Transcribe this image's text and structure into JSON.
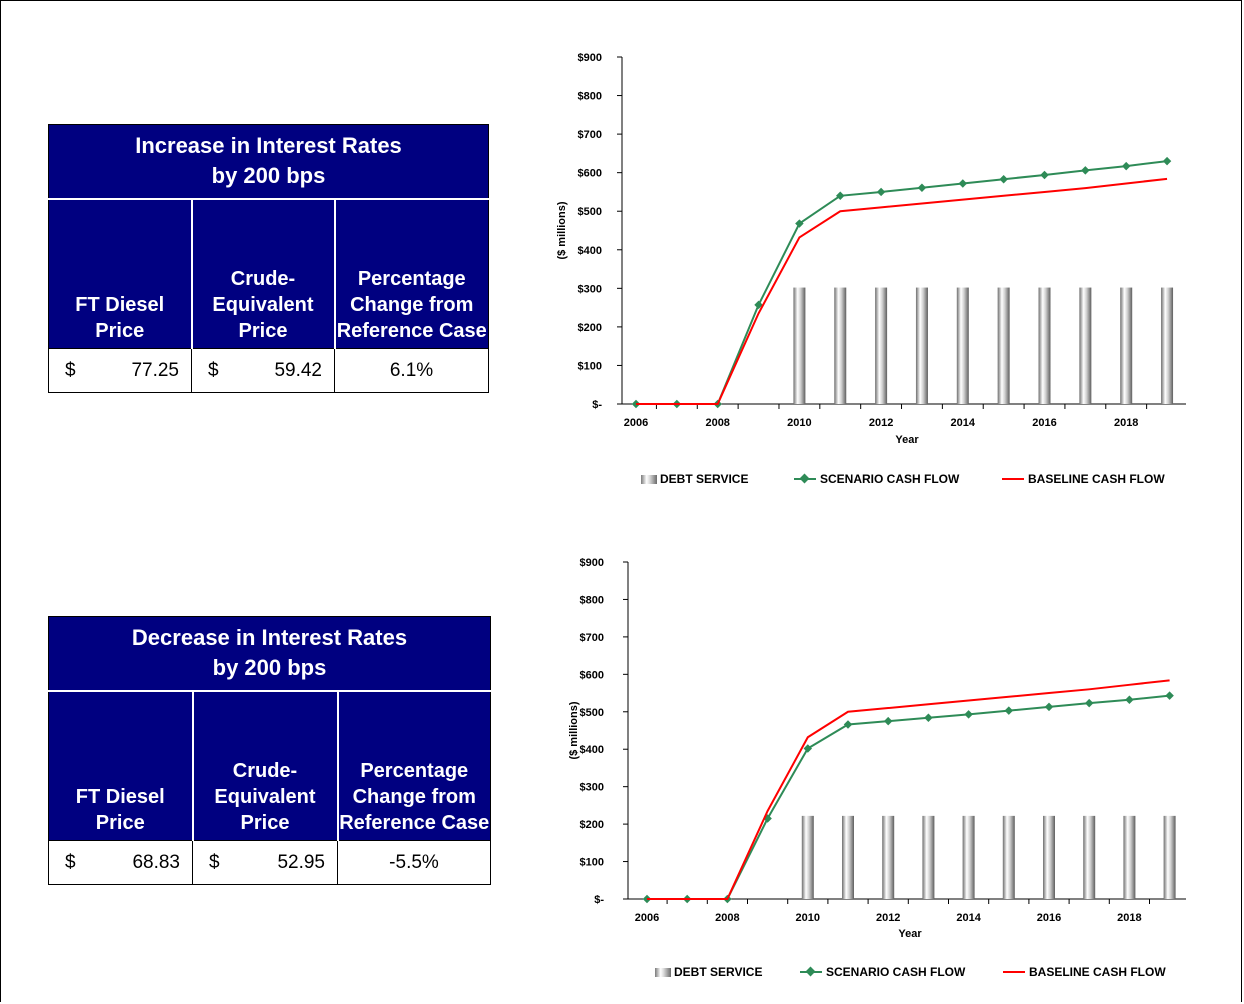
{
  "tables": [
    {
      "title_line1": "Increase in Interest Rates",
      "title_line2": "by 200 bps",
      "col1": "FT Diesel Price",
      "col2": "Crude-Equivalent Price",
      "col3": "Percentage Change from Reference Case",
      "currency": "$",
      "ft_diesel_price": "77.25",
      "crude_equivalent_price": "59.42",
      "pct_change": "6.1%"
    },
    {
      "title_line1": "Decrease in Interest Rates",
      "title_line2": "by 200 bps",
      "col1": "FT Diesel Price",
      "col2": "Crude-Equivalent Price",
      "col3": "Percentage Change from Reference Case",
      "currency": "$",
      "ft_diesel_price": "68.83",
      "crude_equivalent_price": "52.95",
      "pct_change": "-5.5%"
    }
  ],
  "legend": {
    "debt": "DEBT SERVICE",
    "scenario": "SCENARIO CASH FLOW",
    "baseline": "BASELINE CASH FLOW"
  },
  "colors": {
    "scenario": "#2e8b57",
    "baseline": "#ff0000",
    "header_bg": "#000080"
  },
  "chart_data": [
    {
      "type": "bar+line",
      "title": "",
      "xlabel": "Year",
      "ylabel": "($ millions)",
      "ylim": [
        0,
        900
      ],
      "yticks": [
        "$-",
        "$100",
        "$200",
        "$300",
        "$400",
        "$500",
        "$600",
        "$700",
        "$800",
        "$900"
      ],
      "xtick_labels": [
        "2006",
        "2008",
        "2010",
        "2012",
        "2014",
        "2016",
        "2018"
      ],
      "x": [
        2006,
        2007,
        2008,
        2009,
        2010,
        2011,
        2012,
        2013,
        2014,
        2015,
        2016,
        2017,
        2018,
        2019
      ],
      "series": [
        {
          "name": "DEBT SERVICE",
          "kind": "bar",
          "values": [
            0,
            0,
            0,
            0,
            302,
            302,
            302,
            302,
            302,
            302,
            302,
            302,
            302,
            302
          ]
        },
        {
          "name": "SCENARIO CASH FLOW",
          "kind": "line",
          "values": [
            0,
            0,
            0,
            257,
            468,
            540,
            550,
            561,
            572,
            583,
            594,
            606,
            617,
            630
          ]
        },
        {
          "name": "BASELINE CASH FLOW",
          "kind": "line",
          "values": [
            0,
            0,
            0,
            235,
            432,
            500,
            510,
            520,
            530,
            540,
            550,
            560,
            572,
            584
          ]
        }
      ],
      "grid": false,
      "legend_position": "bottom"
    },
    {
      "type": "bar+line",
      "title": "",
      "xlabel": "Year",
      "ylabel": "($ millions)",
      "ylim": [
        0,
        900
      ],
      "yticks": [
        "$-",
        "$100",
        "$200",
        "$300",
        "$400",
        "$500",
        "$600",
        "$700",
        "$800",
        "$900"
      ],
      "xtick_labels": [
        "2006",
        "2008",
        "2010",
        "2012",
        "2014",
        "2016",
        "2018"
      ],
      "x": [
        2006,
        2007,
        2008,
        2009,
        2010,
        2011,
        2012,
        2013,
        2014,
        2015,
        2016,
        2017,
        2018,
        2019
      ],
      "series": [
        {
          "name": "DEBT SERVICE",
          "kind": "bar",
          "values": [
            0,
            0,
            0,
            0,
            222,
            222,
            222,
            222,
            222,
            222,
            222,
            222,
            222,
            222
          ]
        },
        {
          "name": "SCENARIO CASH FLOW",
          "kind": "line",
          "values": [
            0,
            0,
            0,
            215,
            402,
            466,
            475,
            484,
            493,
            503,
            513,
            523,
            532,
            543
          ]
        },
        {
          "name": "BASELINE CASH FLOW",
          "kind": "line",
          "values": [
            0,
            0,
            0,
            235,
            432,
            500,
            510,
            520,
            530,
            540,
            550,
            560,
            572,
            584
          ]
        }
      ],
      "grid": false,
      "legend_position": "bottom"
    }
  ]
}
